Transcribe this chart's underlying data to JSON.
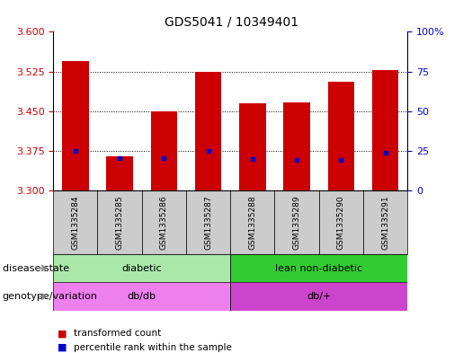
{
  "title": "GDS5041 / 10349401",
  "samples": [
    "GSM1335284",
    "GSM1335285",
    "GSM1335286",
    "GSM1335287",
    "GSM1335288",
    "GSM1335289",
    "GSM1335290",
    "GSM1335291"
  ],
  "bar_values": [
    3.545,
    3.365,
    3.45,
    3.525,
    3.465,
    3.467,
    3.505,
    3.527
  ],
  "percentile_values": [
    3.375,
    3.362,
    3.362,
    3.375,
    3.36,
    3.358,
    3.358,
    3.372
  ],
  "ymin": 3.3,
  "ymax": 3.6,
  "yticks": [
    3.3,
    3.375,
    3.45,
    3.525,
    3.6
  ],
  "right_yticks": [
    0,
    25,
    50,
    75,
    100
  ],
  "bar_color": "#cc0000",
  "marker_color": "#0000cc",
  "disease_groups": [
    {
      "label": "diabetic",
      "start": 0,
      "end": 4,
      "color": "#aae8aa"
    },
    {
      "label": "lean non-diabetic",
      "start": 4,
      "end": 8,
      "color": "#33cc33"
    }
  ],
  "genotype_groups": [
    {
      "label": "db/db",
      "start": 0,
      "end": 4,
      "color": "#ee80ee"
    },
    {
      "label": "db/+",
      "start": 4,
      "end": 8,
      "color": "#cc44cc"
    }
  ],
  "legend_items": [
    {
      "label": "transformed count",
      "color": "#cc0000"
    },
    {
      "label": "percentile rank within the sample",
      "color": "#0000cc"
    }
  ],
  "row_labels": [
    "disease state",
    "genotype/variation"
  ],
  "sample_bg_color": "#cccccc",
  "tick_color_left": "#cc0000",
  "tick_color_right": "#0000cc",
  "grid_color": "#000000",
  "title_fontsize": 10,
  "tick_fontsize": 8,
  "label_fontsize": 8
}
